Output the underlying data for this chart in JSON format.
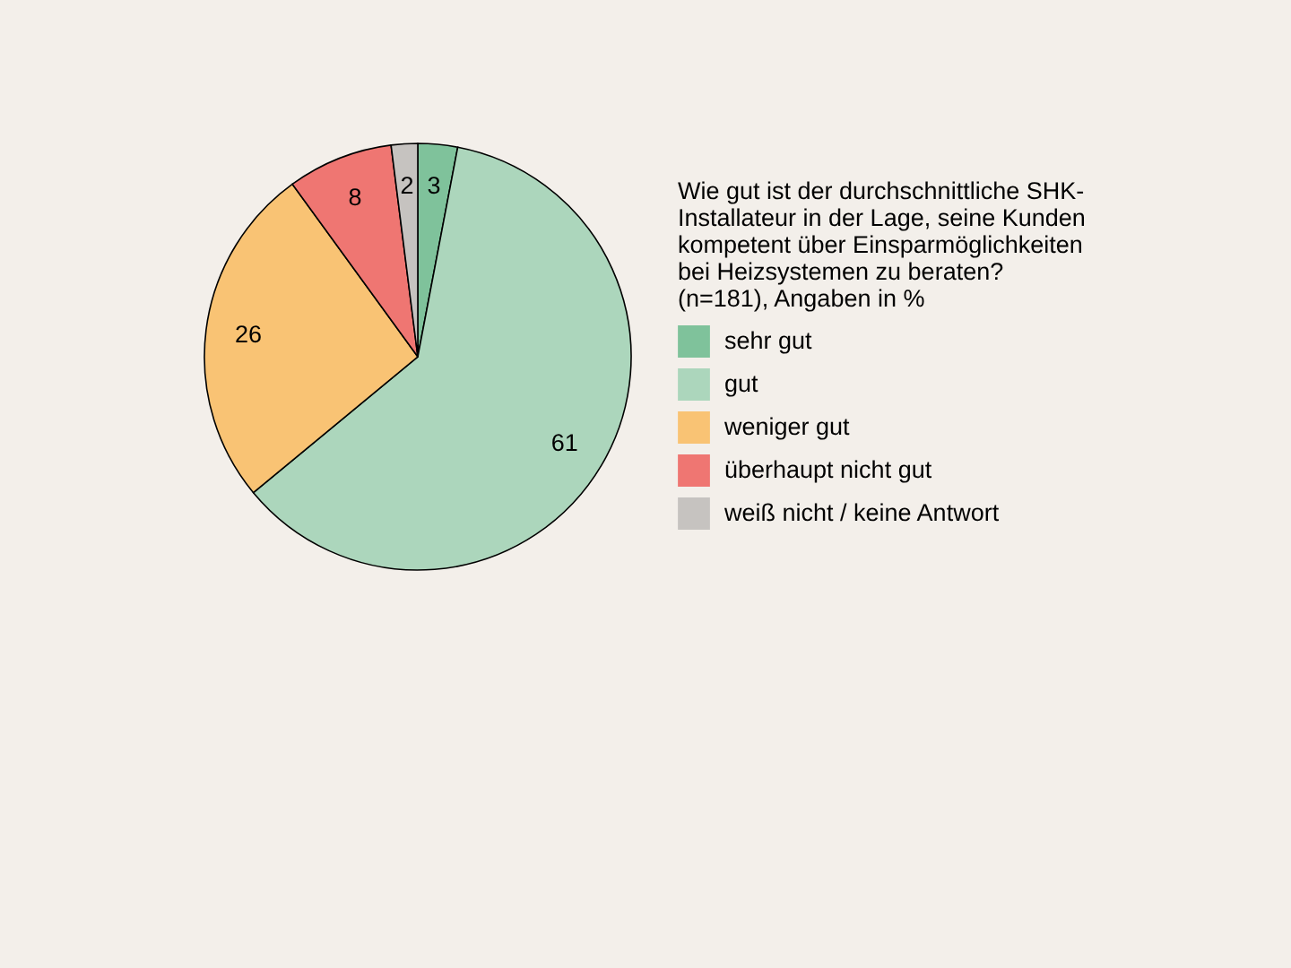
{
  "chart_data": {
    "type": "pie",
    "legend_title": "Wie gut ist der durchschnittliche SHK-Installateur in der Lage, seine Kunden kompetent über Einsparmöglichkeiten bei Heizsystemen zu beraten?\n(n=181), Angaben in %",
    "categories": [
      "sehr gut",
      "gut",
      "weniger gut",
      "überhaupt nicht gut",
      "weiß nicht / keine Antwort"
    ],
    "values": [
      3,
      61,
      26,
      8,
      2
    ],
    "colors": [
      "#7fc29b",
      "#acd6bc",
      "#f9c374",
      "#ef7672",
      "#c6c3c0"
    ],
    "data_labels": true,
    "legend": "right"
  }
}
